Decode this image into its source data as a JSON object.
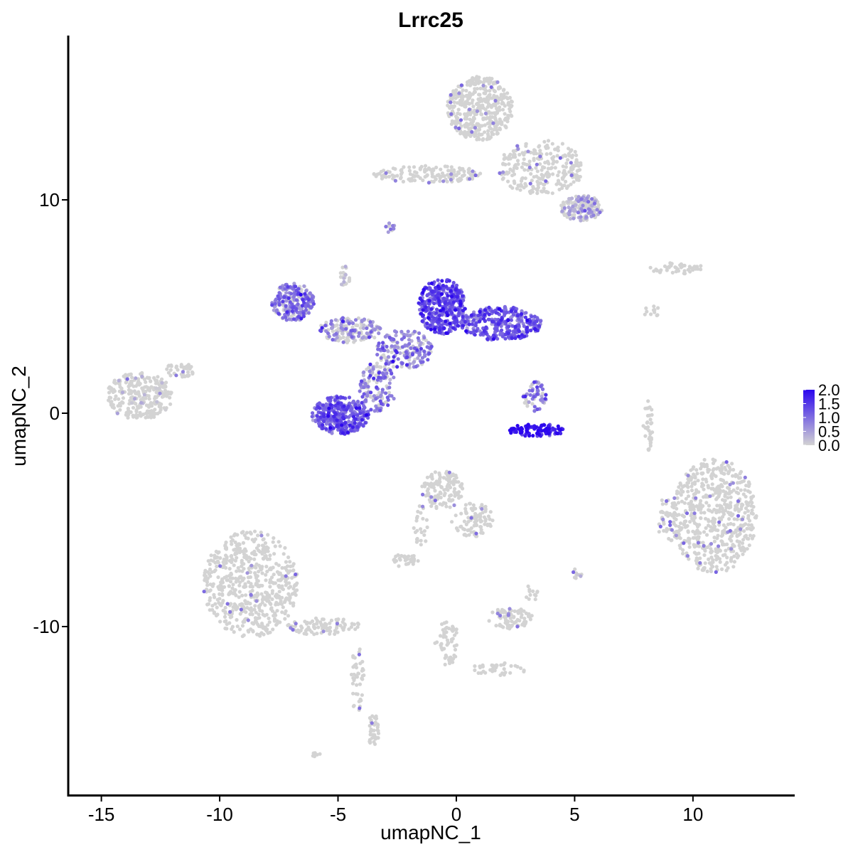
{
  "chart_data": {
    "type": "scatter",
    "title": "Lrrc25",
    "xlabel": "umapNC_1",
    "ylabel": "umapNC_2",
    "xlim": [
      -16.4,
      14.3
    ],
    "ylim": [
      -17.9,
      17.7
    ],
    "x_ticks": [
      -15,
      -10,
      -5,
      0,
      5,
      10
    ],
    "y_ticks": [
      -10,
      0,
      10
    ],
    "x_tick_labels": [
      "-15",
      "-10",
      "-5",
      "0",
      "5",
      "10"
    ],
    "y_tick_labels": [
      "-10",
      "0",
      "10"
    ],
    "grid": false,
    "color_scale": {
      "low_color": "#d3d3d3",
      "high_color": "#2b06ee",
      "min": 0,
      "max": 2.0,
      "breaks": [
        2.0,
        1.5,
        1.0,
        0.5,
        0.0
      ],
      "labels": [
        "2.0",
        "1.5",
        "1.0",
        "0.5",
        "0.0"
      ],
      "legend_position": "right"
    },
    "clusters": [
      {
        "x": 1.0,
        "y": 14.3,
        "rx": 1.4,
        "ry": 1.5,
        "n": 420,
        "expr": 0.02
      },
      {
        "x": 3.6,
        "y": 11.5,
        "rx": 1.8,
        "ry": 1.3,
        "n": 260,
        "expr": 0.03
      },
      {
        "x": -1.2,
        "y": 11.2,
        "rx": 2.3,
        "ry": 0.4,
        "n": 150,
        "expr": 0.05
      },
      {
        "x": 5.3,
        "y": 9.6,
        "rx": 0.9,
        "ry": 0.6,
        "n": 170,
        "expr": 0.45
      },
      {
        "x": -2.8,
        "y": 8.7,
        "rx": 0.2,
        "ry": 0.3,
        "n": 12,
        "expr": 0.7
      },
      {
        "x": 9.3,
        "y": 6.8,
        "rx": 1.1,
        "ry": 0.3,
        "n": 45,
        "expr": 0.04
      },
      {
        "x": 8.2,
        "y": 4.8,
        "rx": 0.4,
        "ry": 0.3,
        "n": 12,
        "expr": 0.0
      },
      {
        "x": -6.9,
        "y": 5.2,
        "rx": 0.9,
        "ry": 0.9,
        "n": 220,
        "expr": 0.85
      },
      {
        "x": -4.5,
        "y": 3.9,
        "rx": 1.3,
        "ry": 0.6,
        "n": 170,
        "expr": 0.6
      },
      {
        "x": -4.7,
        "y": 6.4,
        "rx": 0.2,
        "ry": 0.6,
        "n": 20,
        "expr": 0.2
      },
      {
        "x": -0.6,
        "y": 5.0,
        "rx": 1.0,
        "ry": 1.3,
        "n": 380,
        "expr": 1.25
      },
      {
        "x": 1.9,
        "y": 4.2,
        "rx": 1.7,
        "ry": 0.8,
        "n": 330,
        "expr": 1.1
      },
      {
        "x": -2.2,
        "y": 3.0,
        "rx": 1.2,
        "ry": 0.9,
        "n": 180,
        "expr": 0.8
      },
      {
        "x": -3.3,
        "y": 1.2,
        "rx": 0.8,
        "ry": 1.2,
        "n": 140,
        "expr": 0.75
      },
      {
        "x": -4.9,
        "y": -0.1,
        "rx": 1.2,
        "ry": 0.9,
        "n": 360,
        "expr": 1.1
      },
      {
        "x": 3.3,
        "y": 0.8,
        "rx": 0.5,
        "ry": 0.7,
        "n": 60,
        "expr": 0.85
      },
      {
        "x": 3.4,
        "y": -0.8,
        "rx": 1.2,
        "ry": 0.3,
        "n": 100,
        "expr": 1.75
      },
      {
        "x": -13.4,
        "y": 0.8,
        "rx": 1.4,
        "ry": 1.1,
        "n": 280,
        "expr": 0.12
      },
      {
        "x": -11.7,
        "y": 2.0,
        "rx": 0.6,
        "ry": 0.4,
        "n": 40,
        "expr": 0.05
      },
      {
        "x": 8.1,
        "y": -0.6,
        "rx": 0.2,
        "ry": 1.2,
        "n": 35,
        "expr": 0.03
      },
      {
        "x": 10.9,
        "y": -4.8,
        "rx": 1.8,
        "ry": 2.7,
        "n": 600,
        "expr": 0.04
      },
      {
        "x": 8.9,
        "y": -5.0,
        "rx": 0.4,
        "ry": 1.1,
        "n": 45,
        "expr": 0.08
      },
      {
        "x": -0.6,
        "y": -3.6,
        "rx": 0.9,
        "ry": 0.9,
        "n": 130,
        "expr": 0.06
      },
      {
        "x": 0.7,
        "y": -5.0,
        "rx": 0.9,
        "ry": 0.8,
        "n": 90,
        "expr": 0.02
      },
      {
        "x": -2.2,
        "y": -6.9,
        "rx": 0.6,
        "ry": 0.3,
        "n": 35,
        "expr": 0.04
      },
      {
        "x": -1.5,
        "y": -5.3,
        "rx": 0.3,
        "ry": 1.0,
        "n": 25,
        "expr": 0.02
      },
      {
        "x": 2.3,
        "y": -9.6,
        "rx": 1.0,
        "ry": 0.5,
        "n": 80,
        "expr": 0.08
      },
      {
        "x": 3.2,
        "y": -8.4,
        "rx": 0.3,
        "ry": 0.4,
        "n": 12,
        "expr": 0.0
      },
      {
        "x": 5.1,
        "y": -7.5,
        "rx": 0.2,
        "ry": 0.3,
        "n": 10,
        "expr": 0.3
      },
      {
        "x": -0.4,
        "y": -10.8,
        "rx": 0.5,
        "ry": 1.2,
        "n": 55,
        "expr": 0.01
      },
      {
        "x": 1.8,
        "y": -12.0,
        "rx": 1.2,
        "ry": 0.3,
        "n": 35,
        "expr": 0.02
      },
      {
        "x": -8.7,
        "y": -8.0,
        "rx": 2.0,
        "ry": 2.5,
        "n": 580,
        "expr": 0.01
      },
      {
        "x": -5.6,
        "y": -10.0,
        "rx": 1.6,
        "ry": 0.4,
        "n": 90,
        "expr": 0.01
      },
      {
        "x": -4.2,
        "y": -12.5,
        "rx": 0.3,
        "ry": 1.6,
        "n": 45,
        "expr": 0.0
      },
      {
        "x": -3.5,
        "y": -14.8,
        "rx": 0.25,
        "ry": 0.8,
        "n": 40,
        "expr": 0.0
      },
      {
        "x": -5.9,
        "y": -16.0,
        "rx": 0.2,
        "ry": 0.1,
        "n": 8,
        "expr": 0.0
      }
    ]
  }
}
